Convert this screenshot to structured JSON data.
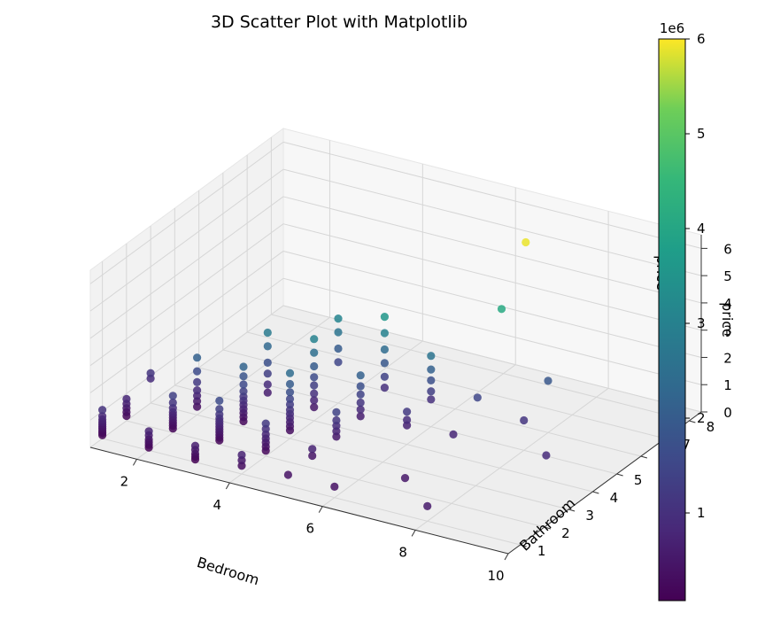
{
  "chart_data": {
    "type": "scatter",
    "subtype": "3d",
    "title": "3D Scatter Plot with Matplotlib",
    "xlabel": "Bedroom",
    "ylabel": "Bathroom",
    "zlabel": "price",
    "xlim": [
      1,
      10
    ],
    "ylim": [
      0.5,
      8.5
    ],
    "zlim": [
      0,
      6.5
    ],
    "x_ticks": [
      "2",
      "4",
      "6",
      "8",
      "10"
    ],
    "y_ticks": [
      "1",
      "2",
      "3",
      "4",
      "5",
      "6",
      "7",
      "8"
    ],
    "z_ticks": [
      "0",
      "1",
      "2",
      "3",
      "4",
      "5",
      "6"
    ],
    "grid": true,
    "colormap": "viridis",
    "colorbar": {
      "label": "price",
      "exponent_label": "1e6",
      "range": [
        75000,
        6000000
      ],
      "ticks": [
        "1",
        "2",
        "3",
        "4",
        "5",
        "6"
      ],
      "tick_values": [
        1,
        2,
        3,
        4,
        5,
        6
      ]
    },
    "points": [
      [
        1,
        1,
        0.12
      ],
      [
        1,
        1,
        0.2
      ],
      [
        1,
        1,
        0.28
      ],
      [
        1,
        1,
        0.36
      ],
      [
        1,
        1,
        0.44
      ],
      [
        1,
        1,
        0.52
      ],
      [
        1,
        1,
        0.6
      ],
      [
        1,
        1,
        0.7
      ],
      [
        1,
        1,
        0.82
      ],
      [
        1,
        1,
        1.05
      ],
      [
        1,
        2,
        0.18
      ],
      [
        1,
        2,
        0.32
      ],
      [
        1,
        2,
        0.46
      ],
      [
        1,
        2,
        0.62
      ],
      [
        1,
        2,
        0.8
      ],
      [
        1,
        3,
        0.9
      ],
      [
        1,
        3,
        1.1
      ],
      [
        2,
        1,
        0.1
      ],
      [
        2,
        1,
        0.2
      ],
      [
        2,
        1,
        0.3
      ],
      [
        2,
        1,
        0.4
      ],
      [
        2,
        1,
        0.55
      ],
      [
        2,
        1,
        0.7
      ],
      [
        2,
        2,
        0.15
      ],
      [
        2,
        2,
        0.25
      ],
      [
        2,
        2,
        0.35
      ],
      [
        2,
        2,
        0.45
      ],
      [
        2,
        2,
        0.55
      ],
      [
        2,
        2,
        0.65
      ],
      [
        2,
        2,
        0.75
      ],
      [
        2,
        2,
        0.9
      ],
      [
        2,
        2,
        1.1
      ],
      [
        2,
        2,
        1.35
      ],
      [
        2,
        3,
        0.3
      ],
      [
        2,
        3,
        0.5
      ],
      [
        2,
        3,
        0.7
      ],
      [
        2,
        3,
        0.9
      ],
      [
        2,
        3,
        1.2
      ],
      [
        2,
        3,
        1.6
      ],
      [
        2,
        3,
        2.1
      ],
      [
        3,
        1,
        0.1
      ],
      [
        3,
        1,
        0.2
      ],
      [
        3,
        1,
        0.3
      ],
      [
        3,
        1,
        0.45
      ],
      [
        3,
        1,
        0.6
      ],
      [
        3,
        2,
        0.15
      ],
      [
        3,
        2,
        0.25
      ],
      [
        3,
        2,
        0.35
      ],
      [
        3,
        2,
        0.45
      ],
      [
        3,
        2,
        0.55
      ],
      [
        3,
        2,
        0.65
      ],
      [
        3,
        2,
        0.75
      ],
      [
        3,
        2,
        0.85
      ],
      [
        3,
        2,
        0.95
      ],
      [
        3,
        2,
        1.1
      ],
      [
        3,
        2,
        1.3
      ],
      [
        3,
        2,
        1.6
      ],
      [
        3,
        3,
        0.2
      ],
      [
        3,
        3,
        0.35
      ],
      [
        3,
        3,
        0.5
      ],
      [
        3,
        3,
        0.65
      ],
      [
        3,
        3,
        0.8
      ],
      [
        3,
        3,
        0.95
      ],
      [
        3,
        3,
        1.1
      ],
      [
        3,
        3,
        1.3
      ],
      [
        3,
        3,
        1.55
      ],
      [
        3,
        3,
        1.85
      ],
      [
        3,
        3,
        2.2
      ],
      [
        3,
        4,
        0.6
      ],
      [
        3,
        4,
        0.9
      ],
      [
        3,
        4,
        1.3
      ],
      [
        3,
        4,
        1.7
      ],
      [
        3,
        4,
        2.3
      ],
      [
        3,
        4,
        2.8
      ],
      [
        4,
        1,
        0.3
      ],
      [
        4,
        1,
        0.5
      ],
      [
        4,
        1,
        0.7
      ],
      [
        4,
        2,
        0.2
      ],
      [
        4,
        2,
        0.35
      ],
      [
        4,
        2,
        0.5
      ],
      [
        4,
        2,
        0.65
      ],
      [
        4,
        2,
        0.8
      ],
      [
        4,
        2,
        1.0
      ],
      [
        4,
        2,
        1.2
      ],
      [
        4,
        3,
        0.3
      ],
      [
        4,
        3,
        0.45
      ],
      [
        4,
        3,
        0.6
      ],
      [
        4,
        3,
        0.75
      ],
      [
        4,
        3,
        0.9
      ],
      [
        4,
        3,
        1.05
      ],
      [
        4,
        3,
        1.25
      ],
      [
        4,
        3,
        1.45
      ],
      [
        4,
        3,
        1.7
      ],
      [
        4,
        3,
        2.0
      ],
      [
        4,
        3,
        2.4
      ],
      [
        4,
        4,
        0.5
      ],
      [
        4,
        4,
        0.75
      ],
      [
        4,
        4,
        1.0
      ],
      [
        4,
        4,
        1.3
      ],
      [
        4,
        4,
        1.6
      ],
      [
        4,
        4,
        2.0
      ],
      [
        4,
        4,
        2.5
      ],
      [
        4,
        4,
        3.0
      ],
      [
        4,
        5,
        1.5
      ],
      [
        4,
        5,
        2.0
      ],
      [
        4,
        5,
        2.6
      ],
      [
        4,
        5,
        3.1
      ],
      [
        5,
        1,
        0.4
      ],
      [
        5,
        2,
        0.45
      ],
      [
        5,
        2,
        0.7
      ],
      [
        5,
        3,
        0.5
      ],
      [
        5,
        3,
        0.7
      ],
      [
        5,
        3,
        0.9
      ],
      [
        5,
        3,
        1.1
      ],
      [
        5,
        3,
        1.4
      ],
      [
        5,
        4,
        0.6
      ],
      [
        5,
        4,
        0.85
      ],
      [
        5,
        4,
        1.1
      ],
      [
        5,
        4,
        1.4
      ],
      [
        5,
        4,
        1.7
      ],
      [
        5,
        4,
        2.1
      ],
      [
        5,
        5,
        1.0
      ],
      [
        5,
        5,
        1.4
      ],
      [
        5,
        5,
        1.9
      ],
      [
        5,
        5,
        2.4
      ],
      [
        5,
        5,
        3.0
      ],
      [
        5,
        5,
        3.6
      ],
      [
        6,
        1,
        0.4
      ],
      [
        6,
        4,
        0.7
      ],
      [
        6,
        4,
        0.9
      ],
      [
        6,
        4,
        1.2
      ],
      [
        6,
        5,
        1.0
      ],
      [
        6,
        5,
        1.3
      ],
      [
        6,
        5,
        1.7
      ],
      [
        6,
        5,
        2.1
      ],
      [
        6,
        5,
        2.6
      ],
      [
        7,
        2,
        0.5
      ],
      [
        7,
        4,
        0.8
      ],
      [
        7,
        5,
        1.5
      ],
      [
        7,
        6,
        4.1
      ],
      [
        7,
        7,
        5.9
      ],
      [
        8,
        1,
        0.55
      ],
      [
        8,
        5,
        1.1
      ],
      [
        8,
        6,
        1.9
      ],
      [
        9,
        4,
        0.9
      ],
      [
        10,
        7,
        1.4
      ]
    ]
  }
}
